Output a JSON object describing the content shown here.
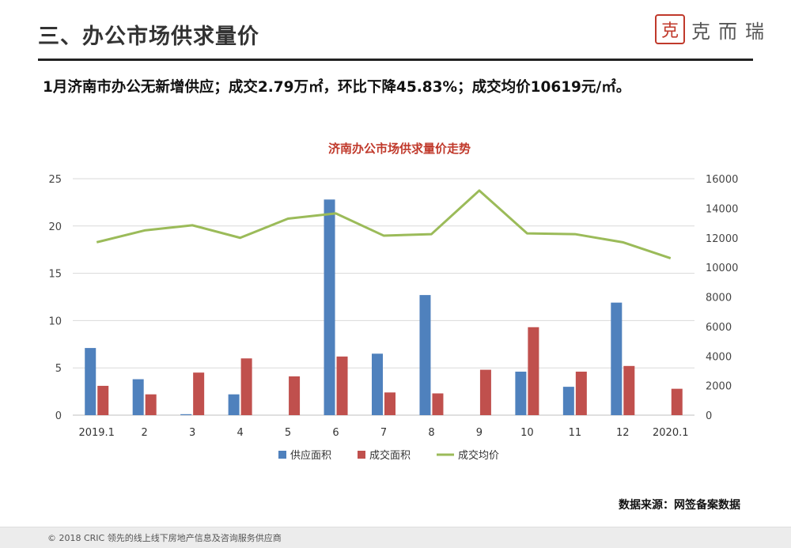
{
  "header": {
    "title": "三、办公市场供求量价",
    "logo_seal": "克",
    "logo_text": "克而瑞"
  },
  "summary": "1月济南市办公无新增供应；成交2.79万㎡，环比下降45.83%；成交均价10619元/㎡。",
  "source": "数据来源：网签备案数据",
  "footer": "© 2018 CRIC  领先的线上线下房地产信息及咨询服务供应商",
  "colors": {
    "supply": "#4f81bd",
    "deal": "#c0504d",
    "price": "#9bbb59"
  },
  "chart_data": {
    "type": "bar",
    "title": "济南办公市场供求量价走势",
    "categories": [
      "2019.1",
      "2",
      "3",
      "4",
      "5",
      "6",
      "7",
      "8",
      "9",
      "10",
      "11",
      "12",
      "2020.1"
    ],
    "series": [
      {
        "name": "供应面积",
        "type": "bar",
        "axis": "left",
        "values": [
          7.1,
          3.8,
          0.1,
          2.2,
          0,
          22.8,
          6.5,
          12.7,
          0,
          4.6,
          3.0,
          11.9,
          0
        ]
      },
      {
        "name": "成交面积",
        "type": "bar",
        "axis": "left",
        "values": [
          3.1,
          2.2,
          4.5,
          6.0,
          4.1,
          6.2,
          2.4,
          2.3,
          4.8,
          9.3,
          4.6,
          5.2,
          2.79
        ]
      },
      {
        "name": "成交均价",
        "type": "line",
        "axis": "right",
        "values": [
          11700,
          12500,
          12850,
          12000,
          13300,
          13650,
          12150,
          12250,
          15200,
          12300,
          12250,
          11700,
          10619
        ]
      }
    ],
    "y_left": {
      "min": 0,
      "max": 25,
      "ticks": [
        0,
        5,
        10,
        15,
        20,
        25
      ]
    },
    "y_right": {
      "min": 0,
      "max": 16000,
      "ticks": [
        0,
        2000,
        4000,
        6000,
        8000,
        10000,
        12000,
        14000,
        16000
      ]
    },
    "grid": true,
    "legend_position": "bottom"
  }
}
